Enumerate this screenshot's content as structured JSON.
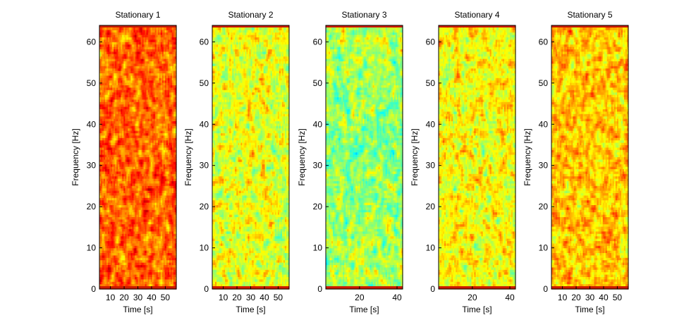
{
  "chart_data": [
    {
      "type": "heatmap",
      "title": "Stationary 1",
      "xlabel": "Time [s]",
      "ylabel": "Frequency [Hz]",
      "xlim": [
        2,
        58
      ],
      "ylim": [
        0,
        64
      ],
      "xticks": [
        10,
        20,
        30,
        40,
        50
      ],
      "yticks": [
        0,
        10,
        20,
        30,
        40,
        50,
        60
      ],
      "base_level": 0.78,
      "colormap": "jet",
      "edge_band_color": "#cc1a00"
    },
    {
      "type": "heatmap",
      "title": "Stationary 2",
      "xlabel": "Time [s]",
      "ylabel": "Frequency [Hz]",
      "xlim": [
        2,
        58
      ],
      "ylim": [
        0,
        64
      ],
      "xticks": [
        10,
        20,
        30,
        40,
        50
      ],
      "yticks": [
        0,
        10,
        20,
        30,
        40,
        50,
        60
      ],
      "base_level": 0.6,
      "colormap": "jet",
      "edge_band_color": "#cc1a00"
    },
    {
      "type": "heatmap",
      "title": "Stationary 3",
      "xlabel": "Time [s]",
      "ylabel": "Frequency [Hz]",
      "xlim": [
        2,
        43
      ],
      "ylim": [
        0,
        64
      ],
      "xticks": [
        20,
        40
      ],
      "yticks": [
        0,
        10,
        20,
        30,
        40,
        50,
        60
      ],
      "base_level": 0.55,
      "colormap": "jet",
      "edge_band_color": "#cc1a00"
    },
    {
      "type": "heatmap",
      "title": "Stationary 4",
      "xlabel": "Time [s]",
      "ylabel": "Frequency [Hz]",
      "xlim": [
        2,
        43
      ],
      "ylim": [
        0,
        64
      ],
      "xticks": [
        20,
        40
      ],
      "yticks": [
        0,
        10,
        20,
        30,
        40,
        50,
        60
      ],
      "base_level": 0.62,
      "colormap": "jet",
      "edge_band_color": "#cc1a00"
    },
    {
      "type": "heatmap",
      "title": "Stationary 5",
      "xlabel": "Time [s]",
      "ylabel": "Frequency [Hz]",
      "xlim": [
        2,
        58
      ],
      "ylim": [
        0,
        64
      ],
      "xticks": [
        10,
        20,
        30,
        40,
        50
      ],
      "yticks": [
        0,
        10,
        20,
        30,
        40,
        50,
        60
      ],
      "base_level": 0.68,
      "colormap": "jet",
      "edge_band_color": "#cc1a00"
    }
  ]
}
